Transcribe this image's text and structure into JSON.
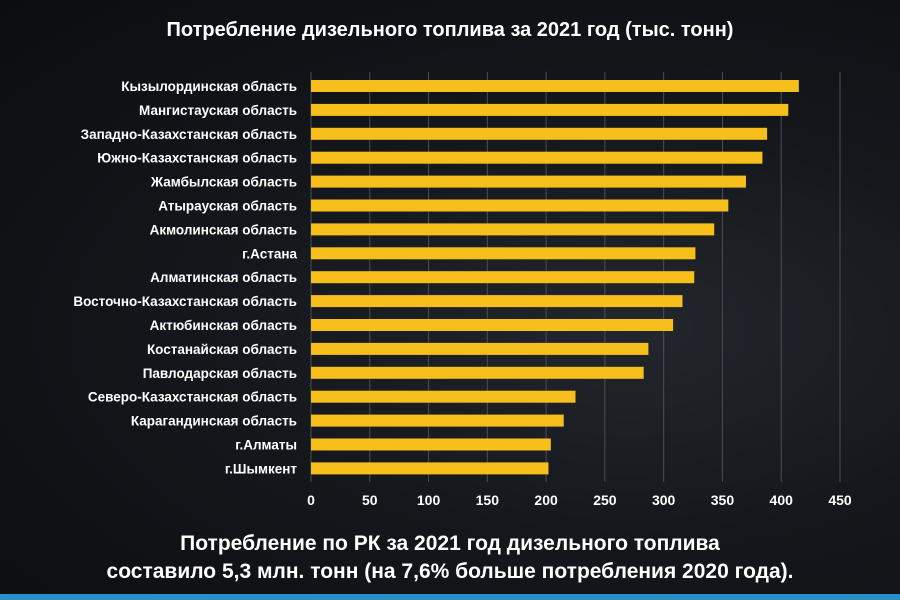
{
  "chart_data": {
    "type": "bar",
    "orientation": "horizontal",
    "title": "Потребление дизельного топлива за 2021 год (тыс. тонн)",
    "categories": [
      "Кызылординская область",
      "Мангистауская область",
      "Западно-Казахстанская область",
      "Южно-Казахстанская область",
      "Жамбылская область",
      "Атырауская область",
      "Акмолинская область",
      "г.Астана",
      "Алматинская область",
      "Восточно-Казахстанская область",
      "Актюбинская область",
      "Костанайская область",
      "Павлодарская область",
      "Северо-Казахстанская область",
      "Карагандинская область",
      "г.Алматы",
      "г.Шымкент"
    ],
    "values": [
      415,
      406,
      388,
      384,
      370,
      355,
      343,
      327,
      326,
      316,
      308,
      287,
      283,
      225,
      215,
      204,
      202
    ],
    "xlim": [
      0,
      450
    ],
    "xticks": [
      "0",
      "50",
      "100",
      "150",
      "200",
      "250",
      "300",
      "350",
      "400",
      "450"
    ],
    "grid": true,
    "bar_color": "#f7bf1b",
    "grid_color": "#4a4f56"
  },
  "footer": {
    "line1": "Потребление по РК за 2021 год дизельного топлива",
    "line2": "составило 5,3 млн. тонн (на 7,6% больше потребления 2020 года)."
  }
}
